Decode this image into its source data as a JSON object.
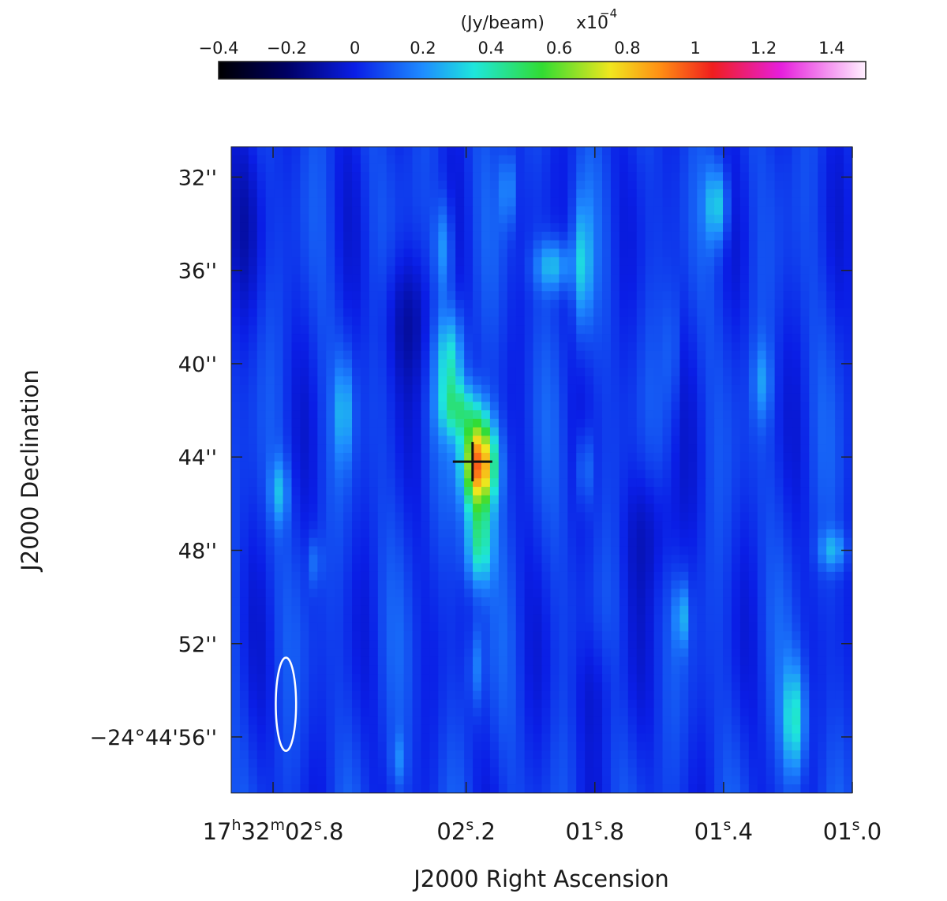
{
  "chart_data": {
    "type": "heatmap",
    "colorbar": {
      "label": "(Jy/beam)",
      "multiplier": "x10",
      "exponent": "−4",
      "range": [
        -0.4,
        1.5
      ],
      "ticks": [
        {
          "value": -0.4,
          "label": "−0.4"
        },
        {
          "value": -0.2,
          "label": "−0.2"
        },
        {
          "value": 0,
          "label": "0"
        },
        {
          "value": 0.2,
          "label": "0.2"
        },
        {
          "value": 0.4,
          "label": "0.4"
        },
        {
          "value": 0.6,
          "label": "0.6"
        },
        {
          "value": 0.8,
          "label": "0.8"
        },
        {
          "value": 1.0,
          "label": "1"
        },
        {
          "value": 1.2,
          "label": "1.2"
        },
        {
          "value": 1.4,
          "label": "1.4"
        }
      ],
      "stops": [
        {
          "v": -0.4,
          "color": "#000000"
        },
        {
          "v": -0.2,
          "color": "#000064"
        },
        {
          "v": 0.0,
          "color": "#0a1ee6"
        },
        {
          "v": 0.2,
          "color": "#1e8cff"
        },
        {
          "v": 0.35,
          "color": "#1ee6dc"
        },
        {
          "v": 0.55,
          "color": "#32dc32"
        },
        {
          "v": 0.75,
          "color": "#f0e61e"
        },
        {
          "v": 0.9,
          "color": "#ff8c14"
        },
        {
          "v": 1.05,
          "color": "#f01e1e"
        },
        {
          "v": 1.25,
          "color": "#e61edc"
        },
        {
          "v": 1.5,
          "color": "#fff0ff"
        }
      ]
    },
    "x_axis": {
      "label": "J2000 Right Ascension",
      "range_s": [
        2.93,
        1.0
      ],
      "ticks": [
        {
          "s": 2.8,
          "hours": "17",
          "h_unit": "h",
          "minutes": "32",
          "m_unit": "m",
          "seconds": "02",
          "s_unit": "s",
          "frac": ".8"
        },
        {
          "s": 2.2,
          "hours": "",
          "h_unit": "",
          "minutes": "",
          "m_unit": "",
          "seconds": "02",
          "s_unit": "s",
          "frac": ".2"
        },
        {
          "s": 1.8,
          "hours": "",
          "h_unit": "",
          "minutes": "",
          "m_unit": "",
          "seconds": "01",
          "s_unit": "s",
          "frac": ".8"
        },
        {
          "s": 1.4,
          "hours": "",
          "h_unit": "",
          "minutes": "",
          "m_unit": "",
          "seconds": "01",
          "s_unit": "s",
          "frac": ".4"
        },
        {
          "s": 1.0,
          "hours": "",
          "h_unit": "",
          "minutes": "",
          "m_unit": "",
          "seconds": "01",
          "s_unit": "s",
          "frac": ".0"
        }
      ]
    },
    "y_axis": {
      "label": "J2000 Declination",
      "range_arcsec": [
        30.7,
        58.4
      ],
      "ticks": [
        {
          "arcsec": 32,
          "label": "32''"
        },
        {
          "arcsec": 36,
          "label": "36''"
        },
        {
          "arcsec": 40,
          "label": "40''"
        },
        {
          "arcsec": 44,
          "label": "44''"
        },
        {
          "arcsec": 48,
          "label": "48''"
        },
        {
          "arcsec": 52,
          "label": "52''"
        },
        {
          "arcsec": 56,
          "label": "−24°44'56''"
        }
      ]
    },
    "background_level": 0.05,
    "sources": [
      {
        "ra_s": 2.16,
        "dec_arcsec": 44.3,
        "peak": 0.95,
        "sx": 0.035,
        "sdec": 1.4
      },
      {
        "ra_s": 2.16,
        "dec_arcsec": 47.8,
        "peak": 0.38,
        "sx": 0.03,
        "sdec": 1.3
      },
      {
        "ra_s": 2.22,
        "dec_arcsec": 42.0,
        "peak": 0.3,
        "sx": 0.04,
        "sdec": 0.9
      },
      {
        "ra_s": 2.25,
        "dec_arcsec": 39.8,
        "peak": 0.3,
        "sx": 0.03,
        "sdec": 1.5
      },
      {
        "ra_s": 2.27,
        "dec_arcsec": 35.0,
        "peak": 0.2,
        "sx": 0.02,
        "sdec": 1.5
      },
      {
        "ra_s": 1.93,
        "dec_arcsec": 35.8,
        "peak": 0.25,
        "sx": 0.04,
        "sdec": 0.8
      },
      {
        "ra_s": 1.84,
        "dec_arcsec": 35.8,
        "peak": 0.24,
        "sx": 0.02,
        "sdec": 2.0
      },
      {
        "ra_s": 2.07,
        "dec_arcsec": 32.5,
        "peak": 0.18,
        "sx": 0.015,
        "sdec": 1.2
      },
      {
        "ra_s": 1.42,
        "dec_arcsec": 33.2,
        "peak": 0.28,
        "sx": 0.025,
        "sdec": 1.2
      },
      {
        "ra_s": 1.18,
        "dec_arcsec": 55.3,
        "peak": 0.32,
        "sx": 0.025,
        "sdec": 1.7
      },
      {
        "ra_s": 1.28,
        "dec_arcsec": 40.8,
        "peak": 0.15,
        "sx": 0.02,
        "sdec": 1.2
      },
      {
        "ra_s": 1.06,
        "dec_arcsec": 48.0,
        "peak": 0.2,
        "sx": 0.03,
        "sdec": 0.6
      },
      {
        "ra_s": 1.53,
        "dec_arcsec": 50.8,
        "peak": 0.2,
        "sx": 0.015,
        "sdec": 1.0
      },
      {
        "ra_s": 2.78,
        "dec_arcsec": 45.5,
        "peak": 0.2,
        "sx": 0.02,
        "sdec": 1.0
      },
      {
        "ra_s": 2.58,
        "dec_arcsec": 42.0,
        "peak": 0.2,
        "sx": 0.02,
        "sdec": 1.6
      },
      {
        "ra_s": 1.83,
        "dec_arcsec": 44.5,
        "peak": 0.18,
        "sx": 0.015,
        "sdec": 1.2
      },
      {
        "ra_s": 2.17,
        "dec_arcsec": 53.0,
        "peak": 0.15,
        "sx": 0.015,
        "sdec": 1.3
      },
      {
        "ra_s": 1.56,
        "dec_arcsec": 39.5,
        "peak": 0.1,
        "sx": 0.015,
        "sdec": 2.0
      },
      {
        "ra_s": 2.41,
        "dec_arcsec": 57.0,
        "peak": 0.12,
        "sx": 0.015,
        "sdec": 0.8
      },
      {
        "ra_s": 2.67,
        "dec_arcsec": 48.5,
        "peak": 0.12,
        "sx": 0.015,
        "sdec": 0.8
      }
    ],
    "depressions": [
      {
        "ra_s": 2.38,
        "dec_arcsec": 38.0,
        "depth": -0.12,
        "sx": 0.06,
        "sdec": 2.0
      },
      {
        "ra_s": 1.62,
        "dec_arcsec": 47.0,
        "depth": -0.1,
        "sx": 0.06,
        "sdec": 2.0
      },
      {
        "ra_s": 2.9,
        "dec_arcsec": 34.0,
        "depth": -0.08,
        "sx": 0.05,
        "sdec": 2.5
      },
      {
        "ra_s": 1.8,
        "dec_arcsec": 54.0,
        "depth": -0.08,
        "sx": 0.05,
        "sdec": 2.0
      }
    ],
    "markers": [
      {
        "type": "cross",
        "ra_s": 2.18,
        "dec_arcsec": 44.2,
        "color": "#111111"
      }
    ],
    "beam": {
      "ra_s": 2.76,
      "dec_arcsec": 54.6,
      "major_arcsec": 4.0,
      "minor_ra_s": 0.063,
      "color": "#ffffff"
    }
  }
}
